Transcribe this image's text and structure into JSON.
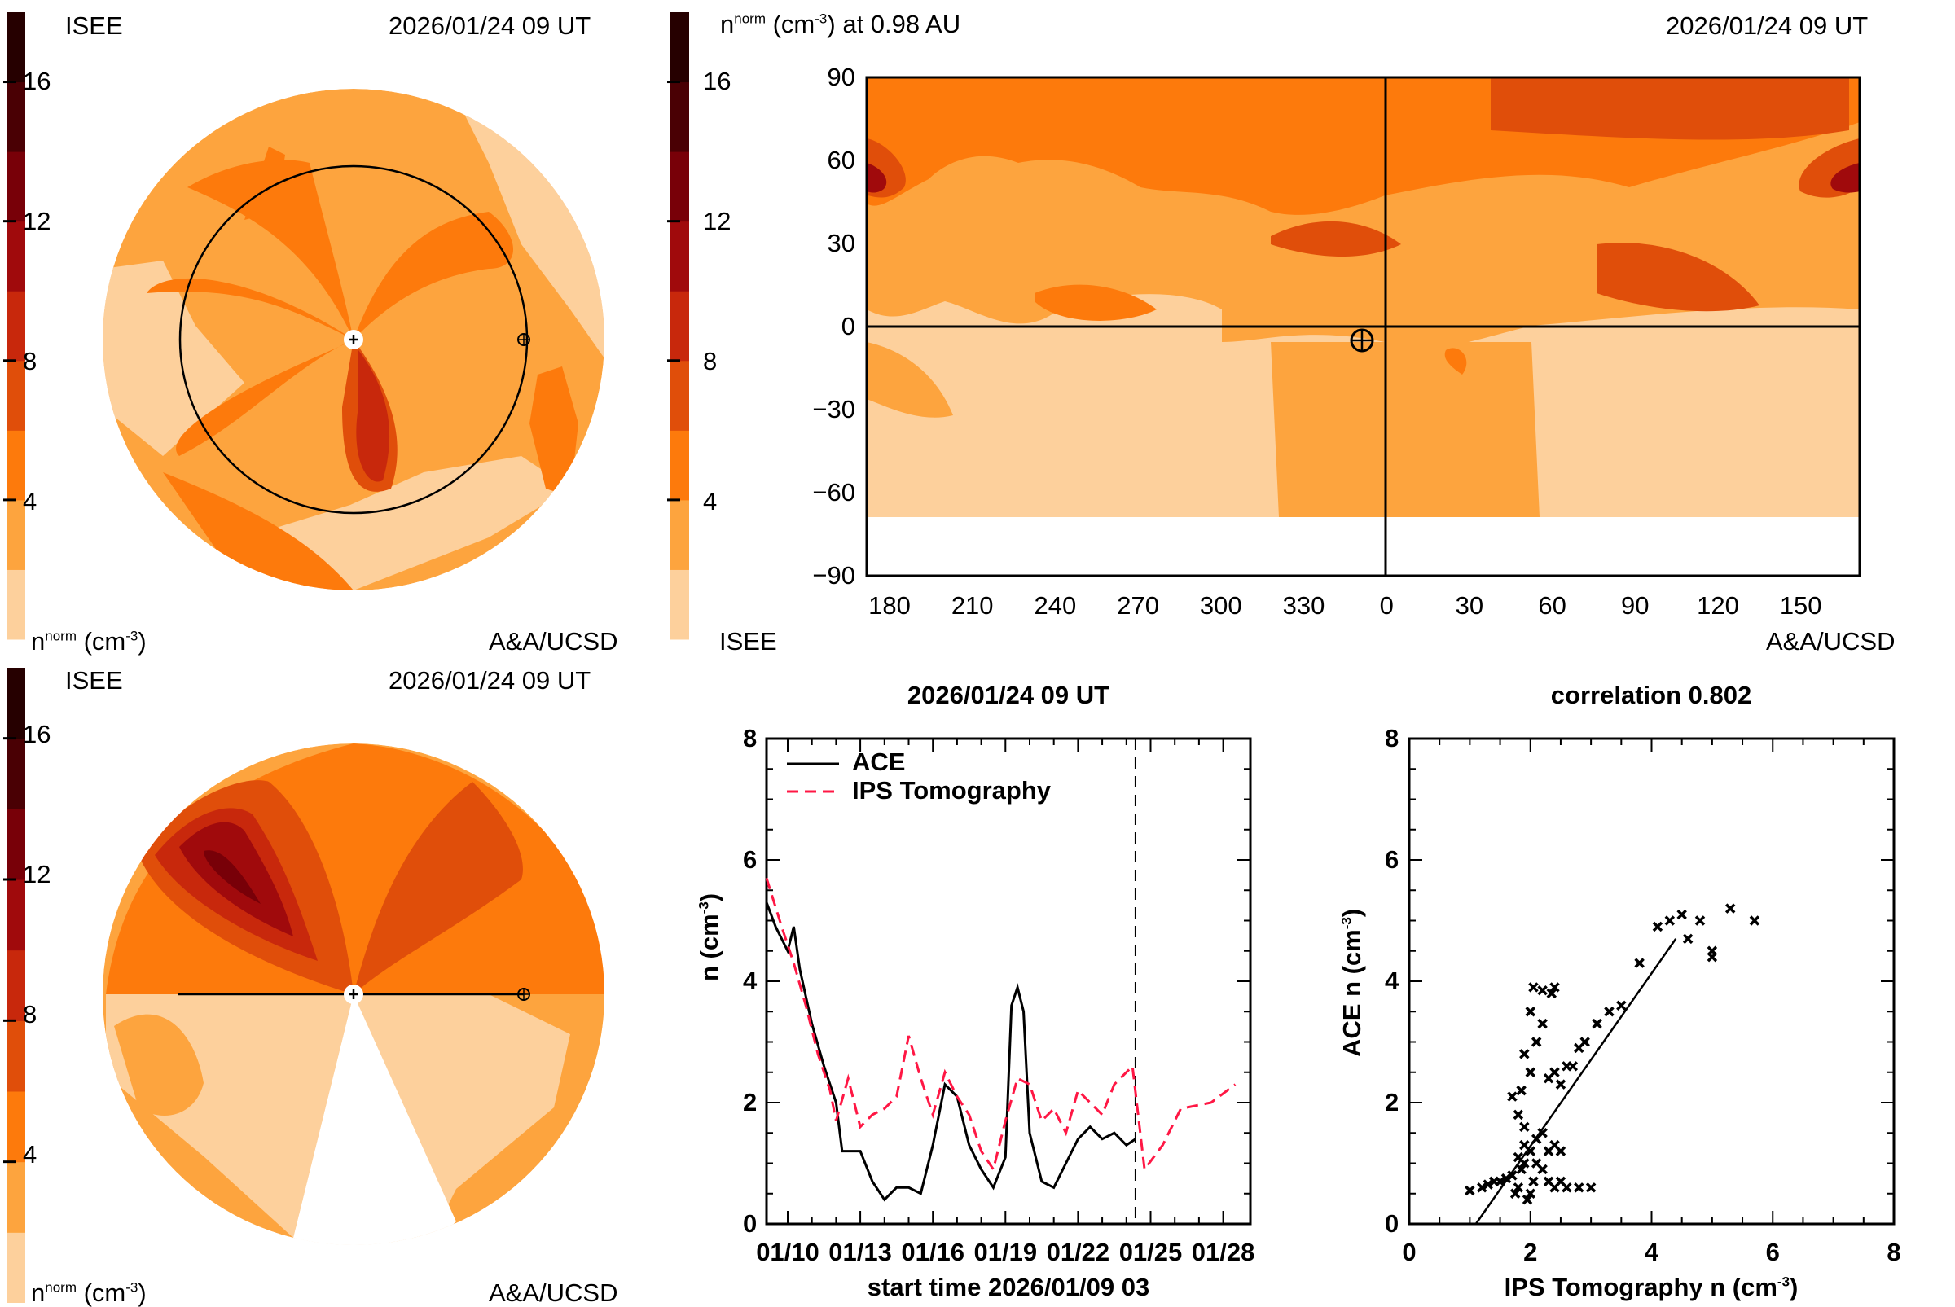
{
  "colors": {
    "scale": [
      "#fdd09c",
      "#fda43e",
      "#fd7a0c",
      "#e04e0a",
      "#c8280c",
      "#a00a0c",
      "#780008",
      "#4a0004",
      "#260000"
    ],
    "ace": "#000000",
    "ips": "#ff1744"
  },
  "panel_top_left": {
    "org_label": "ISEE",
    "timestamp": "2026/01/24 09 UT",
    "unit_label_main": "n",
    "unit_label_sup": "norm",
    "unit_label_rest": "(cm",
    "unit_label_exp": "-3",
    "unit_label_close": ")",
    "credit": "A&A/UCSD",
    "colorbar_ticks": [
      "16",
      "12",
      "8",
      "4"
    ]
  },
  "panel_top_right": {
    "title_main": "n",
    "title_sup": "norm",
    "title_rest": "(cm",
    "title_exp": "-3",
    "title_tail": ") at 0.98 AU",
    "timestamp": "2026/01/24 09 UT",
    "org_label": "ISEE",
    "credit": "A&A/UCSD",
    "colorbar_ticks": [
      "16",
      "12",
      "8",
      "4"
    ],
    "lat_ticks": [
      "90",
      "60",
      "30",
      "0",
      "−30",
      "−60",
      "−90"
    ],
    "lon_ticks": [
      "180",
      "210",
      "240",
      "270",
      "300",
      "330",
      "0",
      "30",
      "60",
      "90",
      "120",
      "150"
    ]
  },
  "panel_bottom_left": {
    "org_label": "ISEE",
    "timestamp": "2026/01/24 09 UT",
    "unit_label_main": "n",
    "unit_label_sup": "norm",
    "unit_label_rest": "(cm",
    "unit_label_exp": "-3",
    "unit_label_close": ")",
    "credit": "A&A/UCSD",
    "colorbar_ticks": [
      "16",
      "12",
      "8",
      "4"
    ]
  },
  "chart_data": [
    {
      "type": "line",
      "title": "2026/01/24 09 UT",
      "xlabel": "start time 2026/01/09 03",
      "ylabel_main": "n (cm",
      "ylabel_exp": "-3",
      "ylabel_close": ")",
      "xlim": [
        "01/09 03",
        "01/29 03"
      ],
      "ylim": [
        0,
        8
      ],
      "yticks": [
        "0",
        "2",
        "4",
        "6",
        "8"
      ],
      "xticks": [
        "01/10",
        "01/13",
        "01/16",
        "01/19",
        "01/22",
        "01/25",
        "01/28"
      ],
      "marker_time": "01/24 09",
      "legend_position": "top-left",
      "series": [
        {
          "name": "ACE",
          "style": "solid",
          "x": [
            "01/09 03",
            "01/09 12",
            "01/10 00",
            "01/10 06",
            "01/10 12",
            "01/11 00",
            "01/11 12",
            "01/12 00",
            "01/12 06",
            "01/13 00",
            "01/13 12",
            "01/14 00",
            "01/14 12",
            "01/15 00",
            "01/15 12",
            "01/16 00",
            "01/16 12",
            "01/17 00",
            "01/17 12",
            "01/18 00",
            "01/18 12",
            "01/19 00",
            "01/19 06",
            "01/19 12",
            "01/19 18",
            "01/20 00",
            "01/20 12",
            "01/21 00",
            "01/21 12",
            "01/22 00",
            "01/22 12",
            "01/23 00",
            "01/23 12",
            "01/24 00",
            "01/24 09"
          ],
          "y": [
            5.3,
            4.9,
            4.5,
            4.9,
            4.2,
            3.3,
            2.6,
            2.0,
            1.2,
            1.2,
            0.7,
            0.4,
            0.6,
            0.6,
            0.5,
            1.3,
            2.3,
            2.1,
            1.3,
            0.9,
            0.6,
            1.1,
            3.6,
            3.9,
            3.5,
            1.5,
            0.7,
            0.6,
            1.0,
            1.4,
            1.6,
            1.4,
            1.5,
            1.3,
            1.4
          ]
        },
        {
          "name": "IPS Tomography",
          "style": "dashed",
          "x": [
            "01/09 03",
            "01/09 18",
            "01/10 06",
            "01/10 18",
            "01/11 06",
            "01/11 18",
            "01/12 00",
            "01/12 12",
            "01/13 00",
            "01/13 12",
            "01/14 00",
            "01/14 12",
            "01/15 00",
            "01/15 12",
            "01/16 00",
            "01/16 12",
            "01/17 00",
            "01/17 12",
            "01/18 00",
            "01/18 12",
            "01/19 00",
            "01/19 12",
            "01/20 00",
            "01/20 12",
            "01/21 00",
            "01/21 12",
            "01/22 00",
            "01/22 12",
            "01/23 00",
            "01/23 12",
            "01/24 06",
            "01/24 18",
            "01/25 12",
            "01/26 06",
            "01/27 12",
            "01/28 12"
          ],
          "y": [
            5.7,
            4.9,
            4.3,
            3.6,
            2.8,
            2.2,
            1.7,
            2.4,
            1.6,
            1.8,
            1.9,
            2.1,
            3.1,
            2.4,
            1.8,
            2.5,
            2.1,
            1.8,
            1.2,
            0.9,
            1.7,
            2.4,
            2.3,
            1.7,
            1.9,
            1.5,
            2.2,
            2.0,
            1.8,
            2.3,
            2.6,
            0.9,
            1.3,
            1.9,
            2.0,
            2.3
          ]
        }
      ]
    },
    {
      "type": "scatter",
      "title": "correlation 0.802",
      "xlabel_main": "IPS Tomography n (cm",
      "xlabel_exp": "-3",
      "xlabel_close": ")",
      "ylabel_main": "ACE n (cm",
      "ylabel_exp": "-3",
      "ylabel_close": ")",
      "xlim": [
        0,
        8
      ],
      "ylim": [
        0,
        8
      ],
      "xticks": [
        "0",
        "2",
        "4",
        "6",
        "8"
      ],
      "yticks": [
        "0",
        "2",
        "4",
        "6",
        "8"
      ],
      "fit_line": {
        "x": [
          1.1,
          4.4
        ],
        "y": [
          0.0,
          4.7
        ]
      },
      "points": [
        [
          1.0,
          0.55
        ],
        [
          1.2,
          0.6
        ],
        [
          1.3,
          0.65
        ],
        [
          1.4,
          0.7
        ],
        [
          1.5,
          0.7
        ],
        [
          1.6,
          0.75
        ],
        [
          1.7,
          0.8
        ],
        [
          1.75,
          0.5
        ],
        [
          1.8,
          0.6
        ],
        [
          1.85,
          0.9
        ],
        [
          1.9,
          1.0
        ],
        [
          1.95,
          0.4
        ],
        [
          2.0,
          0.5
        ],
        [
          2.05,
          0.7
        ],
        [
          1.8,
          1.1
        ],
        [
          1.9,
          1.3
        ],
        [
          2.0,
          1.2
        ],
        [
          2.1,
          1.0
        ],
        [
          2.2,
          0.9
        ],
        [
          2.3,
          0.7
        ],
        [
          2.4,
          0.6
        ],
        [
          2.5,
          0.7
        ],
        [
          2.6,
          0.6
        ],
        [
          2.8,
          0.6
        ],
        [
          3.0,
          0.6
        ],
        [
          2.1,
          1.4
        ],
        [
          2.2,
          1.5
        ],
        [
          2.3,
          1.2
        ],
        [
          2.4,
          1.3
        ],
        [
          2.5,
          1.2
        ],
        [
          1.9,
          1.6
        ],
        [
          1.8,
          1.8
        ],
        [
          1.7,
          2.1
        ],
        [
          1.85,
          2.2
        ],
        [
          2.0,
          2.5
        ],
        [
          1.9,
          2.8
        ],
        [
          2.1,
          3.0
        ],
        [
          2.0,
          3.5
        ],
        [
          2.2,
          3.3
        ],
        [
          2.05,
          3.9
        ],
        [
          2.2,
          3.85
        ],
        [
          2.35,
          3.8
        ],
        [
          2.4,
          3.9
        ],
        [
          2.3,
          2.4
        ],
        [
          2.4,
          2.5
        ],
        [
          2.5,
          2.3
        ],
        [
          2.6,
          2.6
        ],
        [
          2.7,
          2.6
        ],
        [
          2.8,
          2.9
        ],
        [
          2.9,
          3.0
        ],
        [
          3.1,
          3.3
        ],
        [
          3.3,
          3.5
        ],
        [
          3.5,
          3.6
        ],
        [
          3.8,
          4.3
        ],
        [
          4.1,
          4.9
        ],
        [
          4.3,
          5.0
        ],
        [
          4.5,
          5.1
        ],
        [
          4.6,
          4.7
        ],
        [
          4.8,
          5.0
        ],
        [
          5.0,
          4.5
        ],
        [
          5.0,
          4.4
        ],
        [
          5.3,
          5.2
        ],
        [
          5.7,
          5.0
        ]
      ]
    }
  ]
}
